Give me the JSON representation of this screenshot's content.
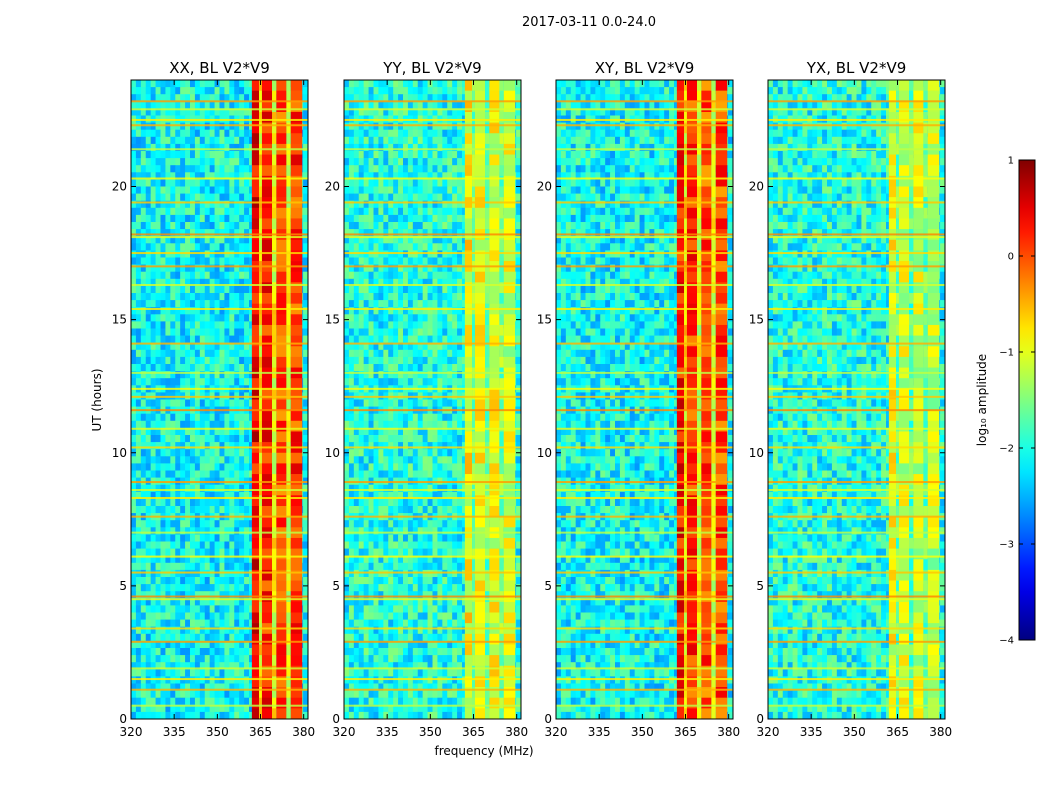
{
  "chart_data": {
    "type": "heatmap",
    "suptitle": "2017-03-11 0.0-24.0",
    "xlabel": "frequency (MHz)",
    "ylabel": "UT (hours)",
    "xlim": [
      320,
      381.5
    ],
    "ylim": [
      0,
      24
    ],
    "xticks": [
      320,
      335,
      350,
      365,
      380
    ],
    "yticks": [
      0,
      5,
      10,
      15,
      20
    ],
    "colormap": "jet",
    "colorbar": {
      "label": "log₁₀ amplitude",
      "vmin": -4,
      "vmax": 1,
      "ticks": [
        "1",
        "0",
        "−1",
        "−2",
        "−3",
        "−4"
      ],
      "tick_values": [
        1,
        0,
        -1,
        -2,
        -3,
        -4
      ]
    },
    "panels": [
      {
        "title": "XX, BL V2*V9",
        "background_level": -2.1,
        "band_levels": [
          0.4,
          -0.8,
          0.2,
          -0.9,
          0.0,
          -1.0,
          0.1
        ]
      },
      {
        "title": "YY, BL V2*V9",
        "background_level": -2.0,
        "band_levels": [
          -0.9,
          -1.5,
          -1.0,
          -1.6,
          -1.0,
          -1.5,
          -1.1
        ]
      },
      {
        "title": "XY, BL V2*V9",
        "background_level": -2.1,
        "band_levels": [
          0.3,
          -0.8,
          0.1,
          -1.0,
          0.0,
          -1.0,
          0.0
        ]
      },
      {
        "title": "YX, BL V2*V9",
        "background_level": -2.0,
        "band_levels": [
          -1.0,
          -1.6,
          -1.1,
          -1.7,
          -1.1,
          -1.6,
          -1.2
        ]
      }
    ],
    "band_freqs_mhz": [
      [
        362,
        364.5
      ],
      [
        364.5,
        365.5
      ],
      [
        365.5,
        369
      ],
      [
        369,
        370.5
      ],
      [
        370.5,
        374
      ],
      [
        374,
        375.5
      ],
      [
        375.5,
        379.5
      ]
    ],
    "rfi_lines_ut": [
      0.5,
      1.1,
      1.5,
      1.9,
      2.9,
      3.4,
      4.5,
      4.6,
      5.5,
      6.1,
      7.0,
      7.6,
      8.3,
      8.6,
      8.9,
      10.2,
      10.9,
      11.6,
      12.1,
      12.4,
      13.0,
      14.1,
      15.4,
      16.3,
      17.0,
      17.5,
      18.1,
      18.2,
      19.4,
      20.3,
      21.4,
      22.3,
      22.5,
      22.9,
      23.2
    ]
  }
}
